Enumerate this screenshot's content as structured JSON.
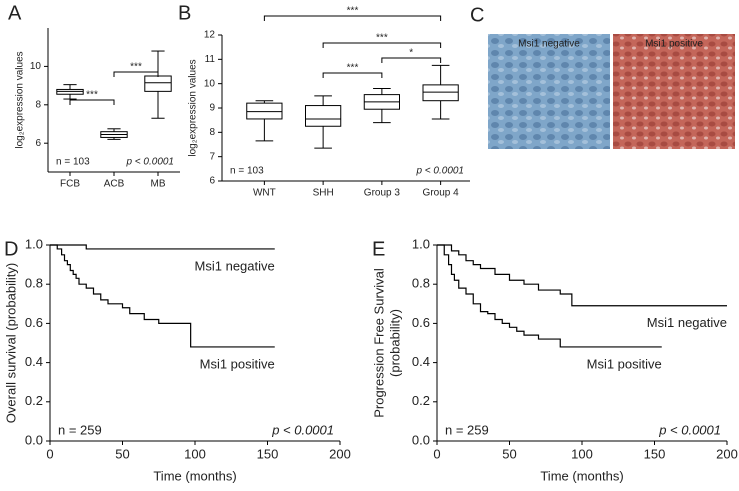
{
  "chart_data": [
    {
      "type": "box",
      "panel": "A",
      "ylabel": "log₂expression values",
      "categories": [
        "FCB",
        "ACB",
        "MB"
      ],
      "boxes": [
        {
          "min": 8.3,
          "q1": 8.55,
          "median": 8.7,
          "q3": 8.8,
          "max": 9.05
        },
        {
          "min": 6.2,
          "q1": 6.3,
          "median": 6.45,
          "q3": 6.6,
          "max": 6.75
        },
        {
          "min": 7.3,
          "q1": 8.7,
          "median": 9.15,
          "q3": 9.5,
          "max": 10.8
        }
      ],
      "ylim": [
        4.5,
        12
      ],
      "yticks": [
        6,
        8,
        10
      ],
      "comparisons": [
        {
          "from": "FCB",
          "to": "ACB",
          "text": "***"
        },
        {
          "from": "ACB",
          "to": "MB",
          "text": "***"
        }
      ],
      "n_label": "n = 103",
      "p_label": "p < 0.0001"
    },
    {
      "type": "box",
      "panel": "B",
      "ylabel": "log₂expression values",
      "categories": [
        "WNT",
        "SHH",
        "Group 3",
        "Group 4"
      ],
      "boxes": [
        {
          "min": 7.65,
          "q1": 8.55,
          "median": 8.85,
          "q3": 9.2,
          "max": 9.3
        },
        {
          "min": 7.35,
          "q1": 8.25,
          "median": 8.55,
          "q3": 9.1,
          "max": 9.5
        },
        {
          "min": 8.4,
          "q1": 8.95,
          "median": 9.25,
          "q3": 9.55,
          "max": 9.8
        },
        {
          "min": 8.55,
          "q1": 9.3,
          "median": 9.65,
          "q3": 9.95,
          "max": 10.75
        }
      ],
      "ylim": [
        6,
        12
      ],
      "yticks": [
        6,
        7,
        8,
        9,
        10,
        11,
        12
      ],
      "comparisons": [
        {
          "from": "WNT",
          "to": "Group 4",
          "text": "***"
        },
        {
          "from": "SHH",
          "to": "Group 4",
          "text": "***"
        },
        {
          "from": "Group 3",
          "to": "Group 4",
          "text": "*"
        },
        {
          "from": "SHH",
          "to": "Group 3",
          "text": "***"
        }
      ],
      "n_label": "n = 103",
      "p_label": "p < 0.0001"
    },
    {
      "type": "survival",
      "panel": "D",
      "ylabel": [
        "Overall survival (probability)"
      ],
      "xlabel": "Time (months)",
      "xlim": [
        0,
        200
      ],
      "xticks": [
        0,
        50,
        100,
        150,
        200
      ],
      "ylim": [
        0,
        1
      ],
      "yticks": [
        {
          "value": 0,
          "label": "0.0"
        },
        {
          "value": 0.2,
          "label": "0.2"
        },
        {
          "value": 0.4,
          "label": "0.4"
        },
        {
          "value": 0.6,
          "label": "0.6"
        },
        {
          "value": 0.8,
          "label": "0.8"
        },
        {
          "value": 1,
          "label": "1.0"
        }
      ],
      "series": [
        {
          "name": "Msi1 negative",
          "color": "#000000",
          "x": [
            0,
            25,
            155
          ],
          "y": [
            1,
            0.98,
            0.98
          ]
        },
        {
          "name": "Msi1 positive",
          "color": "#000000",
          "x": [
            0,
            5,
            8,
            10,
            12,
            14,
            16,
            18,
            20,
            25,
            30,
            35,
            40,
            50,
            55,
            60,
            65,
            75,
            80,
            90,
            97,
            155
          ],
          "y": [
            1,
            0.98,
            0.95,
            0.92,
            0.9,
            0.87,
            0.85,
            0.83,
            0.8,
            0.78,
            0.75,
            0.72,
            0.7,
            0.68,
            0.65,
            0.65,
            0.62,
            0.6,
            0.6,
            0.6,
            0.48,
            0.48
          ]
        }
      ],
      "n_label": "n = 259",
      "p_label": "p < 0.0001"
    },
    {
      "type": "survival",
      "panel": "E",
      "ylabel": [
        "Progression Free Survival",
        "(probability)"
      ],
      "xlabel": "Time (months)",
      "xlim": [
        0,
        200
      ],
      "xticks": [
        0,
        50,
        100,
        150,
        200
      ],
      "ylim": [
        0,
        1
      ],
      "yticks": [
        {
          "value": 0,
          "label": "0.0"
        },
        {
          "value": 0.2,
          "label": "0.2"
        },
        {
          "value": 0.4,
          "label": "0.4"
        },
        {
          "value": 0.6,
          "label": "0.6"
        },
        {
          "value": 0.8,
          "label": "0.8"
        },
        {
          "value": 1,
          "label": "1.0"
        }
      ],
      "series": [
        {
          "name": "Msi1 negative",
          "color": "#000000",
          "x": [
            0,
            10,
            15,
            20,
            25,
            30,
            40,
            50,
            60,
            70,
            85,
            93,
            200
          ],
          "y": [
            1,
            0.97,
            0.95,
            0.92,
            0.9,
            0.88,
            0.85,
            0.82,
            0.8,
            0.77,
            0.75,
            0.69,
            0.69
          ]
        },
        {
          "name": "Msi1 positive",
          "color": "#000000",
          "x": [
            0,
            5,
            8,
            10,
            12,
            15,
            20,
            25,
            30,
            35,
            40,
            45,
            50,
            55,
            60,
            70,
            85,
            155
          ],
          "y": [
            1,
            0.95,
            0.9,
            0.85,
            0.82,
            0.78,
            0.75,
            0.7,
            0.66,
            0.65,
            0.62,
            0.6,
            0.58,
            0.56,
            0.54,
            0.52,
            0.48,
            0.48
          ]
        }
      ],
      "n_label": "n = 259",
      "p_label": "p < 0.0001"
    }
  ],
  "image_panel": {
    "panel": "C",
    "images": [
      {
        "label": "Msi1 negative"
      },
      {
        "label": "Msi1 positive"
      }
    ]
  }
}
